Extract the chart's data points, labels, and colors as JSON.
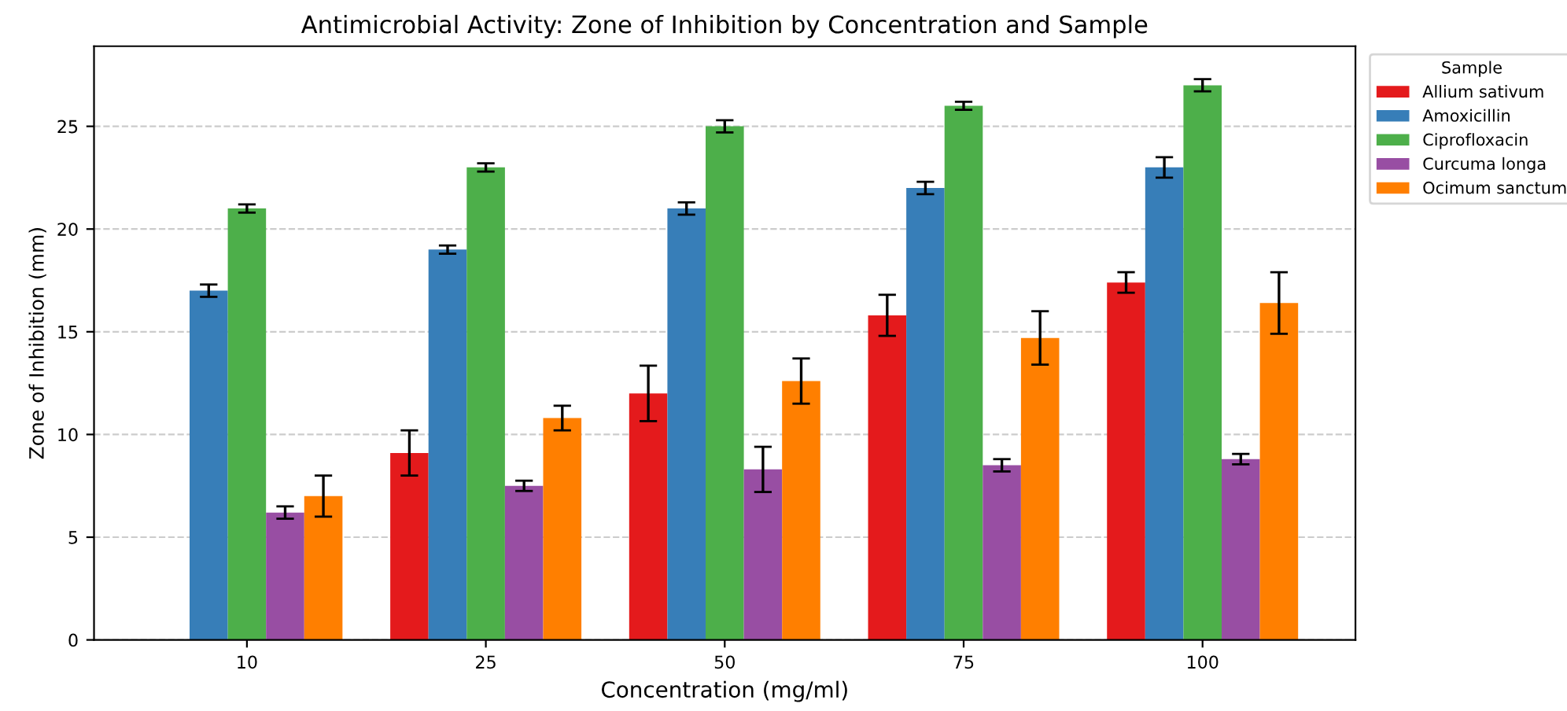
{
  "chart_data": {
    "type": "bar",
    "title": "Antimicrobial Activity: Zone of Inhibition by Concentration and Sample",
    "xlabel": "Concentration (mg/ml)",
    "ylabel": "Zone of Inhibition (mm)",
    "legend_title": "Sample",
    "categories": [
      "10",
      "25",
      "50",
      "75",
      "100"
    ],
    "series": [
      {
        "name": "Allium sativum",
        "color": "#e41a1c",
        "values": [
          0,
          9.1,
          12.0,
          15.8,
          17.4
        ],
        "errors": [
          null,
          1.1,
          1.35,
          1.0,
          0.5
        ]
      },
      {
        "name": "Amoxicillin",
        "color": "#377eb8",
        "values": [
          17.0,
          19.0,
          21.0,
          22.0,
          23.0
        ],
        "errors": [
          0.3,
          0.2,
          0.3,
          0.3,
          0.5
        ]
      },
      {
        "name": "Ciprofloxacin",
        "color": "#4daf4a",
        "values": [
          21.0,
          23.0,
          25.0,
          26.0,
          27.0
        ],
        "errors": [
          0.2,
          0.2,
          0.3,
          0.2,
          0.3
        ]
      },
      {
        "name": "Curcuma longa",
        "color": "#984ea3",
        "values": [
          6.2,
          7.5,
          8.3,
          8.5,
          8.8
        ],
        "errors": [
          0.3,
          0.25,
          1.1,
          0.3,
          0.25
        ]
      },
      {
        "name": "Ocimum sanctum",
        "color": "#ff7f00",
        "values": [
          7.0,
          10.8,
          12.6,
          14.7,
          16.4
        ],
        "errors": [
          1.0,
          0.6,
          1.1,
          1.3,
          1.5
        ]
      }
    ],
    "ylim": [
      0,
      28.9
    ],
    "yticks": [
      0,
      5,
      10,
      15,
      20,
      25
    ],
    "grid": "y",
    "legend": "right"
  }
}
